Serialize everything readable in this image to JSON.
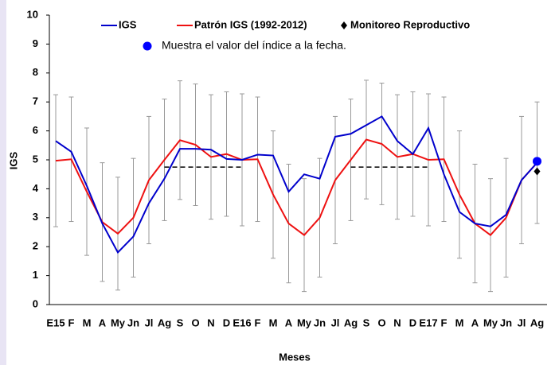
{
  "chart_data": {
    "type": "line",
    "y_label": "IGS",
    "x_label": "Meses",
    "categories": [
      "E15",
      "F",
      "M",
      "A",
      "My",
      "Jn",
      "Jl",
      "Ag",
      "S",
      "O",
      "N",
      "D",
      "E16",
      "F",
      "M",
      "A",
      "My",
      "Jn",
      "Jl",
      "Ag",
      "S",
      "O",
      "N",
      "D",
      "E17",
      "F",
      "M",
      "A",
      "My",
      "Jn",
      "Jl",
      "Ag"
    ],
    "ylim": [
      0,
      10
    ],
    "yticks": [
      0,
      1,
      2,
      3,
      4,
      5,
      6,
      7,
      8,
      9,
      10
    ],
    "series": [
      {
        "name": "IGS",
        "color": "#0000cc",
        "marker": "line",
        "values": [
          5.65,
          5.28,
          4.1,
          2.8,
          1.8,
          2.35,
          3.5,
          4.35,
          5.38,
          5.38,
          5.35,
          5.03,
          5.0,
          5.18,
          5.15,
          3.9,
          4.5,
          4.35,
          5.8,
          5.9,
          6.2,
          6.5,
          5.65,
          5.2,
          6.1,
          4.5,
          3.2,
          2.8,
          2.7,
          3.1,
          4.3,
          4.9
        ]
      },
      {
        "name": "Patrón IGS (1992-2012)",
        "color": "#ee1111",
        "marker": "line",
        "error_color": "#999999",
        "values": [
          4.97,
          5.02,
          3.9,
          2.85,
          2.45,
          3.0,
          4.3,
          5.0,
          5.68,
          5.52,
          5.1,
          5.2,
          5.0,
          5.02,
          3.8,
          2.8,
          2.4,
          3.0,
          4.3,
          5.0,
          5.7,
          5.55,
          5.1,
          5.2,
          5.0,
          5.02,
          3.8,
          2.8,
          2.4,
          3.0,
          4.3,
          4.9
        ],
        "errors": [
          2.28,
          2.15,
          2.2,
          2.05,
          1.95,
          2.05,
          2.2,
          2.1,
          2.05,
          2.1,
          2.15,
          2.15,
          2.28,
          2.15,
          2.2,
          2.05,
          1.95,
          2.05,
          2.2,
          2.1,
          2.05,
          2.1,
          2.15,
          2.15,
          2.28,
          2.15,
          2.2,
          2.05,
          1.95,
          2.05,
          2.2,
          2.1
        ]
      },
      {
        "name": "Monitoreo Reproductivo",
        "color": "#000000",
        "marker": "diamond",
        "values": [
          null,
          null,
          null,
          null,
          null,
          null,
          null,
          null,
          null,
          null,
          null,
          null,
          null,
          null,
          null,
          null,
          null,
          null,
          null,
          null,
          null,
          null,
          null,
          null,
          null,
          null,
          null,
          null,
          null,
          null,
          null,
          4.6
        ]
      },
      {
        "name": "Muestra el valor del índice a la fecha.",
        "color": "#0000ff",
        "marker": "circle",
        "values": [
          null,
          null,
          null,
          null,
          null,
          null,
          null,
          null,
          null,
          null,
          null,
          null,
          null,
          null,
          null,
          null,
          null,
          null,
          null,
          null,
          null,
          null,
          null,
          null,
          null,
          null,
          null,
          null,
          null,
          null,
          null,
          4.95
        ]
      },
      {
        "color": "#000000",
        "marker": "dashed",
        "values": [
          null,
          null,
          null,
          null,
          null,
          null,
          null,
          4.75,
          4.75,
          4.75,
          4.75,
          4.75,
          4.75,
          null,
          null,
          null,
          null,
          null,
          null,
          4.75,
          4.75,
          4.75,
          4.75,
          4.75,
          4.75,
          null,
          null,
          null,
          null,
          null,
          null,
          null
        ]
      }
    ]
  }
}
